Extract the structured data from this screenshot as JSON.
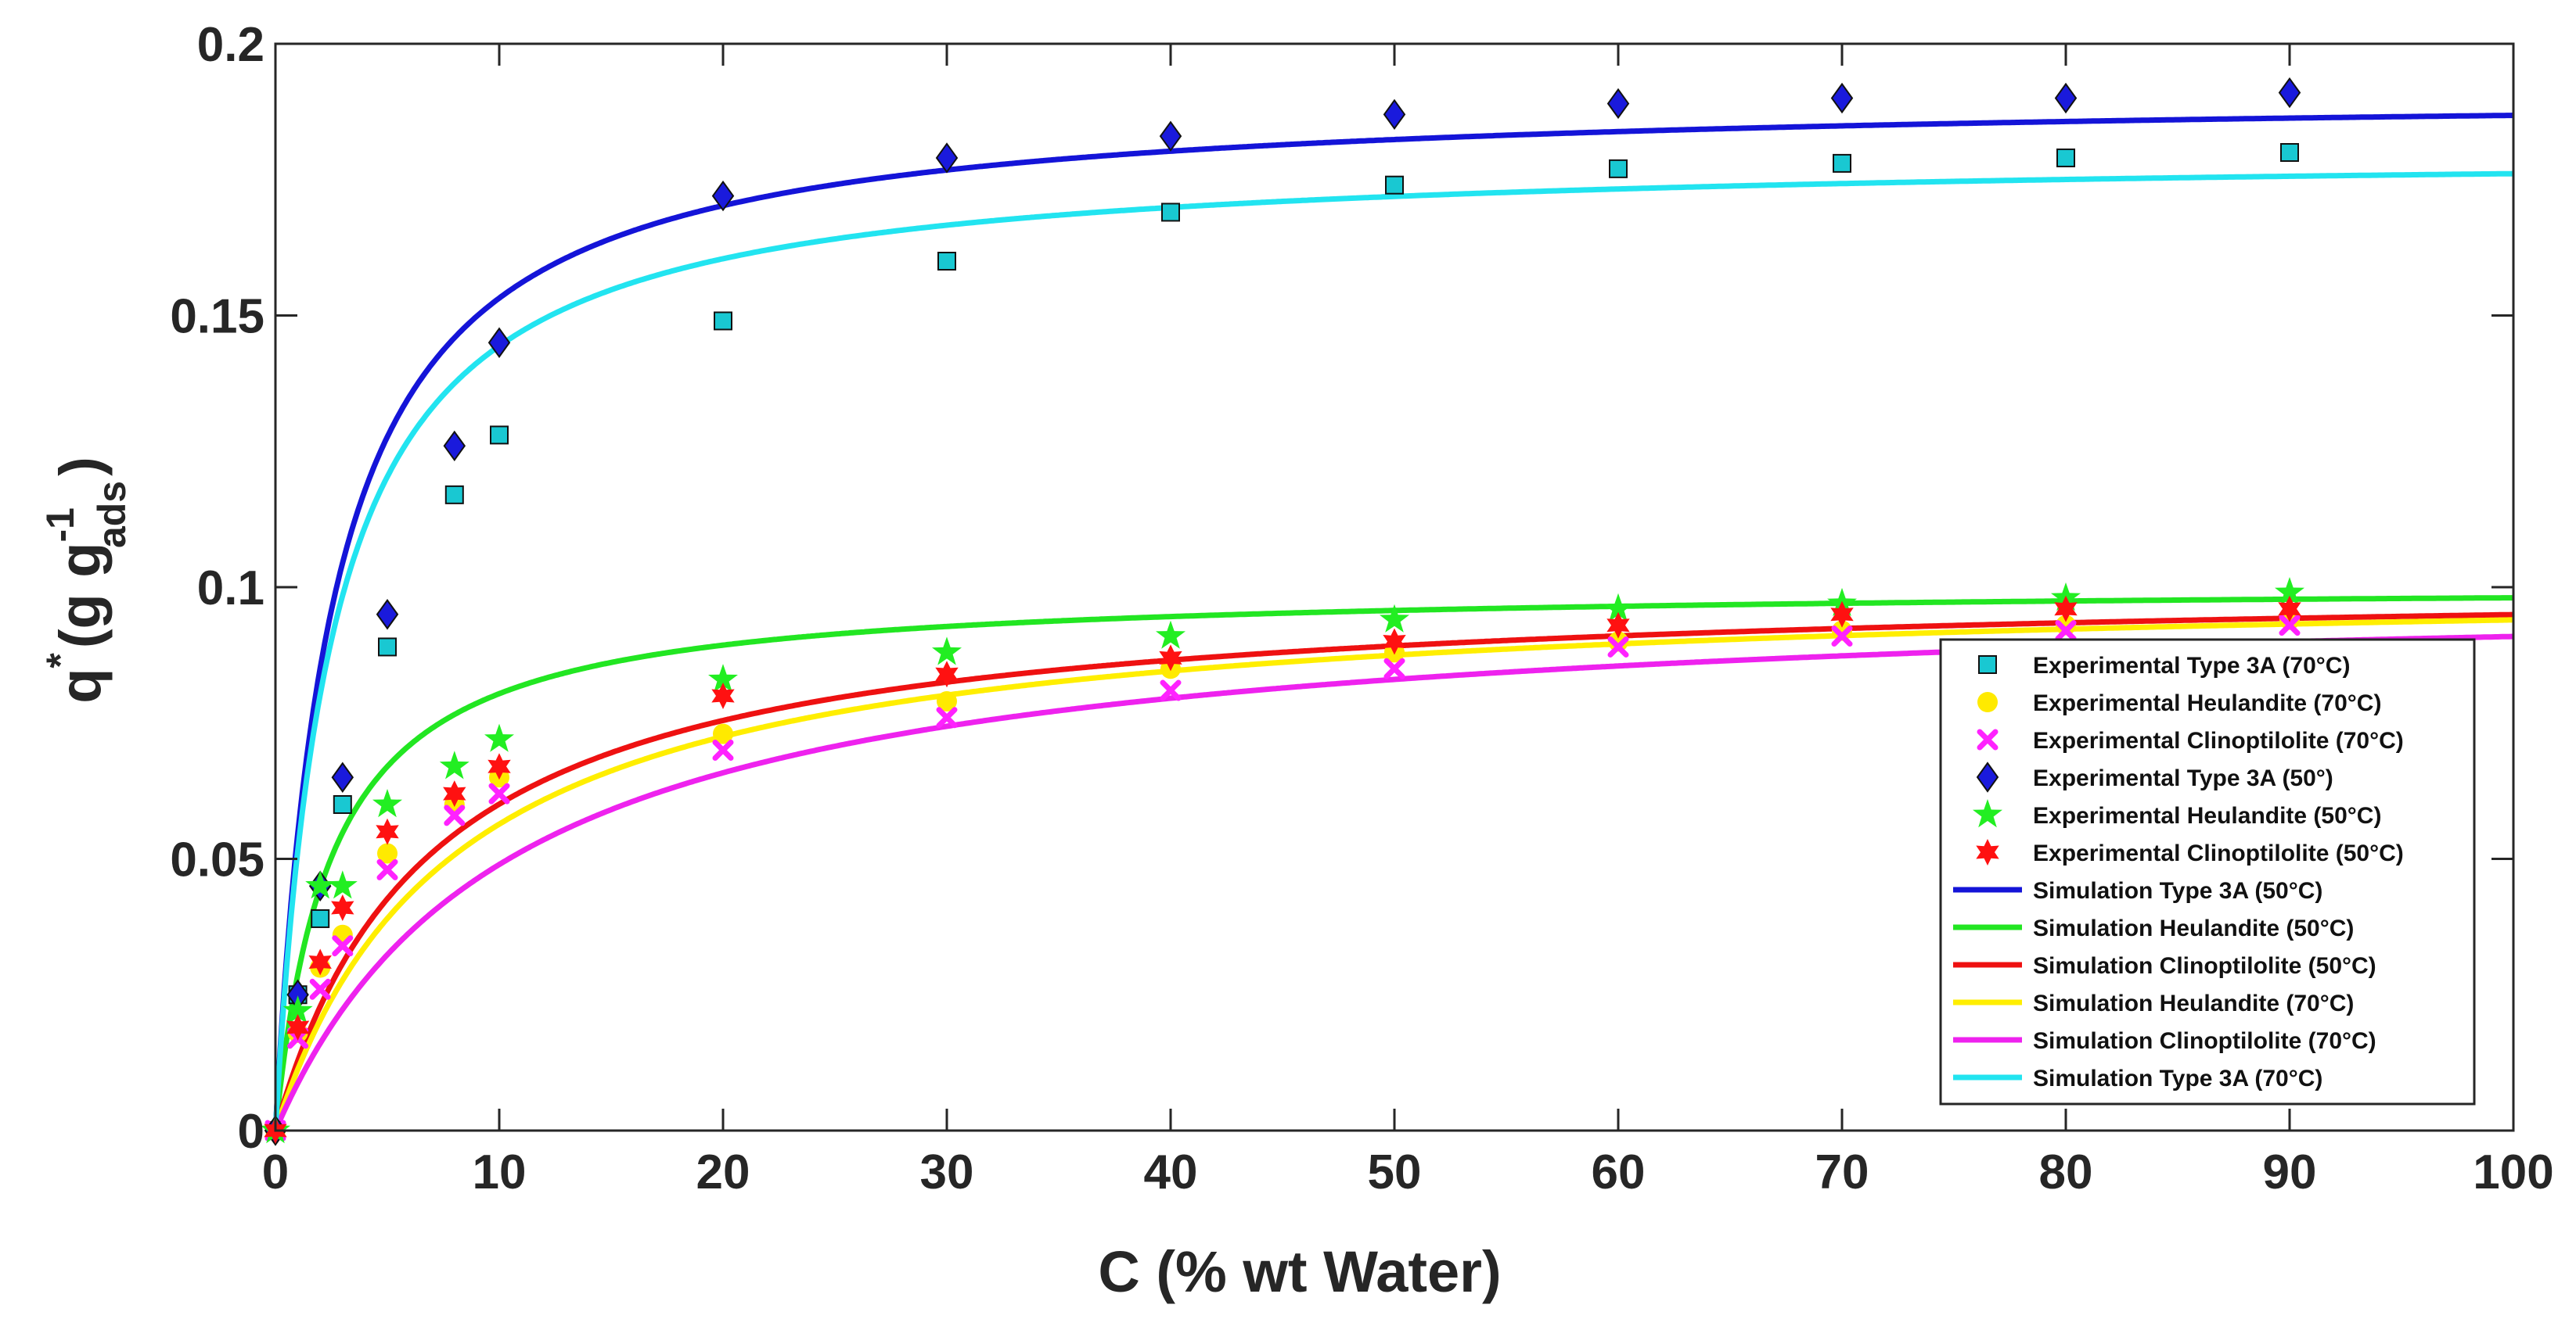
{
  "chart_data": {
    "type": "scatter",
    "title": "",
    "xlabel": "C (% wt Water)",
    "ylabel": {
      "main": "q",
      "sup_star": "*",
      "open": "(g  g",
      "sub": "ads",
      "sup": "-1",
      "close": ")"
    },
    "xlim": [
      0,
      100
    ],
    "ylim": [
      0,
      0.2
    ],
    "xticks": [
      0,
      10,
      20,
      30,
      40,
      50,
      60,
      70,
      80,
      90,
      100
    ],
    "xtick_labels": [
      "0",
      "10",
      "20",
      "30",
      "40",
      "50",
      "60",
      "70",
      "80",
      "90",
      "100"
    ],
    "yticks": [
      0,
      0.05,
      0.1,
      0.15,
      0.2
    ],
    "ytick_labels": [
      "0",
      "0.05",
      "0.1",
      "0.15",
      "0.2"
    ],
    "grid": false,
    "legend_position": "bottom-right",
    "series": [
      {
        "name": "Experimental Type 3A (70°C)",
        "kind": "marker",
        "marker": "square",
        "color": "#19c8d2",
        "x": [
          0,
          1,
          2,
          3,
          5,
          8,
          10,
          20,
          30,
          40,
          50,
          60,
          70,
          80,
          90
        ],
        "y": [
          0,
          0.025,
          0.039,
          0.06,
          0.089,
          0.117,
          0.128,
          0.149,
          0.16,
          0.169,
          0.174,
          0.177,
          0.178,
          0.179,
          0.18
        ]
      },
      {
        "name": "Experimental Heulandite (70°C)",
        "kind": "marker",
        "marker": "circle",
        "color": "#ffea00",
        "x": [
          0,
          1,
          2,
          3,
          5,
          8,
          10,
          20,
          30,
          40,
          50,
          60,
          70,
          80,
          90
        ],
        "y": [
          0,
          0.018,
          0.03,
          0.036,
          0.051,
          0.06,
          0.065,
          0.073,
          0.079,
          0.085,
          0.088,
          0.09,
          0.092,
          0.093,
          0.094
        ]
      },
      {
        "name": "Experimental Clinoptilolite (70°C)",
        "kind": "marker",
        "marker": "x",
        "color": "#ff22ff",
        "x": [
          0,
          1,
          2,
          3,
          5,
          8,
          10,
          20,
          30,
          40,
          50,
          60,
          70,
          80,
          90
        ],
        "y": [
          0,
          0.017,
          0.026,
          0.034,
          0.048,
          0.058,
          0.062,
          0.07,
          0.076,
          0.081,
          0.085,
          0.089,
          0.091,
          0.092,
          0.093
        ]
      },
      {
        "name": "Experimental Type 3A (50°)",
        "kind": "marker",
        "marker": "diamond",
        "color": "#1a1adc",
        "x": [
          0,
          1,
          2,
          3,
          5,
          8,
          10,
          20,
          30,
          40,
          50,
          60,
          70,
          80,
          90
        ],
        "y": [
          0,
          0.025,
          0.045,
          0.065,
          0.095,
          0.126,
          0.145,
          0.172,
          0.179,
          0.183,
          0.187,
          0.189,
          0.19,
          0.19,
          0.191
        ]
      },
      {
        "name": "Experimental Heulandite (50°C)",
        "kind": "marker",
        "marker": "star5",
        "color": "#22ee22",
        "x": [
          0,
          1,
          2,
          3,
          5,
          8,
          10,
          20,
          30,
          40,
          50,
          60,
          70,
          80,
          90
        ],
        "y": [
          0,
          0.022,
          0.045,
          0.045,
          0.06,
          0.067,
          0.072,
          0.083,
          0.088,
          0.091,
          0.094,
          0.096,
          0.097,
          0.098,
          0.099
        ]
      },
      {
        "name": "Experimental Clinoptilolite (50°C)",
        "kind": "marker",
        "marker": "star6",
        "color": "#ff1111",
        "x": [
          0,
          1,
          2,
          3,
          5,
          8,
          10,
          20,
          30,
          40,
          50,
          60,
          70,
          80,
          90
        ],
        "y": [
          0,
          0.019,
          0.031,
          0.041,
          0.055,
          0.062,
          0.067,
          0.08,
          0.084,
          0.087,
          0.09,
          0.093,
          0.095,
          0.096,
          0.096
        ]
      },
      {
        "name": "Simulation Type 3A (50°C)",
        "kind": "line",
        "color": "#1414d8",
        "qmax": 0.1915,
        "b": 0.4
      },
      {
        "name": "Simulation Heulandite (50°C)",
        "kind": "line",
        "color": "#22e622",
        "qmax": 0.1005,
        "b": 0.4
      },
      {
        "name": "Simulation Clinoptilolite (50°C)",
        "kind": "line",
        "color": "#ee1111",
        "qmax": 0.1015,
        "b": 0.145
      },
      {
        "name": "Simulation Heulandite (70°C)",
        "kind": "line",
        "color": "#ffee00",
        "qmax": 0.1015,
        "b": 0.125
      },
      {
        "name": "Simulation Clinoptilolite (70°C)",
        "kind": "line",
        "color": "#ee22ee",
        "qmax": 0.1005,
        "b": 0.095
      },
      {
        "name": "Simulation Type 3A (70°C)",
        "kind": "line",
        "color": "#22e4f0",
        "qmax": 0.1805,
        "b": 0.4
      }
    ]
  }
}
